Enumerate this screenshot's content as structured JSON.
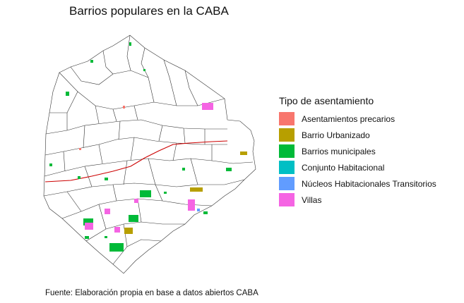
{
  "title": "Barrios populares en la CABA",
  "legend": {
    "title": "Tipo de asentamiento",
    "items": [
      {
        "label": "Asentamientos precarios",
        "color": "#F8766D"
      },
      {
        "label": "Barrio Urbanizado",
        "color": "#B79F00"
      },
      {
        "label": "Barrios municipales",
        "color": "#00BA38"
      },
      {
        "label": "Conjunto Habitacional",
        "color": "#00BFC4"
      },
      {
        "label": "Núcleos Habitacionales Transitorios",
        "color": "#619CFF"
      },
      {
        "label": "Villas",
        "color": "#F564E3"
      }
    ]
  },
  "colors": {
    "boundary": "#333333",
    "railway": "#cc0000"
  },
  "caption": "Fuente: Elaboración propia en base a datos abiertos CABA"
}
